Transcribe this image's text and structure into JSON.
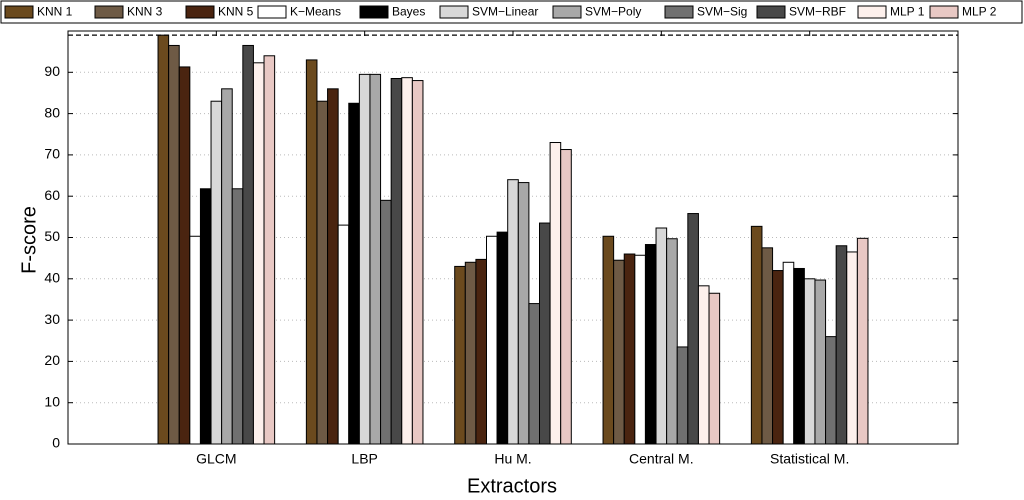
{
  "chart_data": {
    "type": "bar",
    "x_label": "Extractors",
    "y_label": "F-score",
    "categories": [
      "GLCM",
      "LBP",
      "Hu M.",
      "Central M.",
      "Statistical M."
    ],
    "series": [
      {
        "name": "KNN 1",
        "color": "#6b4a1e",
        "values": [
          99,
          93,
          43,
          50.3,
          52.7
        ]
      },
      {
        "name": "KNN 3",
        "color": "#6e5a45",
        "values": [
          96.5,
          83,
          44,
          44.5,
          47.5
        ]
      },
      {
        "name": "KNN 5",
        "color": "#4a2410",
        "values": [
          91.3,
          86,
          44.7,
          46,
          42
        ]
      },
      {
        "name": "K−Means",
        "color": "#ffffff",
        "values": [
          50.3,
          53,
          50.3,
          45.7,
          44
        ]
      },
      {
        "name": "Bayes",
        "color": "#000000",
        "values": [
          61.8,
          82.5,
          51.3,
          48.3,
          42.5
        ]
      },
      {
        "name": "SVM−Linear",
        "color": "#d8d8d8",
        "values": [
          83,
          89.5,
          64,
          52.3,
          40
        ]
      },
      {
        "name": "SVM−Poly",
        "color": "#a8a8a8",
        "values": [
          86,
          89.5,
          63.3,
          49.7,
          39.7
        ]
      },
      {
        "name": "SVM−Sig",
        "color": "#707070",
        "values": [
          61.8,
          59,
          34,
          23.5,
          26
        ]
      },
      {
        "name": "SVM−RBF",
        "color": "#484848",
        "values": [
          96.5,
          88.5,
          53.5,
          55.8,
          48
        ]
      },
      {
        "name": "MLP 1",
        "color": "#fdf0ec",
        "values": [
          92.3,
          88.7,
          73,
          38.3,
          46.5
        ]
      },
      {
        "name": "MLP 2",
        "color": "#e8c8c4",
        "values": [
          94,
          88,
          71.3,
          36.5,
          49.8
        ]
      }
    ],
    "reference_line": 99,
    "ylim": [
      0,
      100
    ],
    "yticks": [
      0,
      10,
      20,
      30,
      40,
      50,
      60,
      70,
      80,
      90
    ],
    "grid": true
  }
}
